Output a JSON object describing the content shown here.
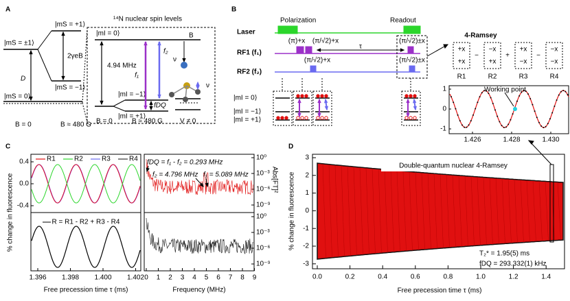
{
  "panel_a": {
    "letter": "A",
    "ms_p1": "|mS = +1⟩",
    "ms_pm1": "|mS = ±1⟩",
    "ms_m1": "|mS = −1⟩",
    "ms_0": "|mS = 0⟩",
    "zeeman": "2γeB",
    "zfs": "D",
    "b0": "B = 0",
    "b480": "B ≈ 480 G",
    "inset_title": "¹⁴N nuclear spin levels",
    "mi_0": "|mI = 0⟩",
    "split": "4.94 MHz",
    "f1": "f₁",
    "f2": "f₂",
    "mi_m1": "|mI = −1⟩",
    "mi_p1": "|mI = +1⟩",
    "fdq": "fDQ",
    "field": "B",
    "nu1": "ν",
    "nu2": "ν",
    "inset_b0": "B = 0",
    "inset_b480": "B ≈ 480 G",
    "vne0": "V ≠ 0"
  },
  "panel_b": {
    "letter": "B",
    "laser": "Laser",
    "polarization": "Polarization",
    "readout": "Readout",
    "rf1": "RF1 (f₁)",
    "rf2": "RF2 (f₂)",
    "pi_x": "(π)+x",
    "half_x": "(π/√2)+x",
    "tau": "τ",
    "half_pm": "(π/√2)±x",
    "rf2_half_x": "(π/√2)+x",
    "rf2_half_pm": "(π/√2)±x",
    "lvl_0": "|mI = 0⟩",
    "lvl_m1": "|mI = −1⟩",
    "lvl_p1": "|mI = +1⟩",
    "ramsey_title": "4-Ramsey",
    "ramsey": [
      {
        "name": "R1",
        "top": "+x",
        "bottom": "+x"
      },
      {
        "name": "R2",
        "top": "−x",
        "bottom": "+x"
      },
      {
        "name": "R3",
        "top": "+x",
        "bottom": "−x"
      },
      {
        "name": "R4",
        "top": "−x",
        "bottom": "−x"
      }
    ],
    "operators": [
      "−",
      "+",
      "−"
    ],
    "inset": {
      "annotation": "Working point",
      "yticks": [
        "1",
        "0",
        "-1"
      ],
      "xticks": [
        "1.426",
        "1.428",
        "1.430"
      ]
    }
  },
  "panel_c": {
    "letter": "C",
    "legend": [
      "R1",
      "R2",
      "R3",
      "R4"
    ],
    "ylabel": "% change in fluorescence",
    "yticks": [
      "0.4",
      "0.0",
      "-0.4"
    ],
    "combo": "R = R1 - R2 + R3 - R4",
    "xticks": [
      "1.396",
      "1.398",
      "1.400",
      "1.402"
    ],
    "xlabel": "Free precession time τ (ms)",
    "fdq": "fDQ = f₁ - f₂ = 0.293 MHz",
    "f2": "f₂ = 4.796 MHz",
    "f1": "f₁ = 5.089 MHz",
    "y2label": "Abs[FT]²",
    "y2ticks": [
      "10⁰",
      "10⁻³",
      "10⁻⁶",
      "10⁻⁹"
    ],
    "y2ticks_bottom": [
      "10⁰",
      "10⁻³",
      "10⁻⁶",
      "10⁻⁹"
    ],
    "fxticks": [
      "0",
      "1",
      "2",
      "3",
      "4",
      "5",
      "6",
      "7",
      "8",
      "9"
    ],
    "fxlabel": "Frequency (MHz)"
  },
  "panel_d": {
    "letter": "D",
    "title": "Double-quantum nuclear 4-Ramsey",
    "yticks": [
      "3",
      "2",
      "1",
      "0",
      "-1",
      "-2",
      "-3"
    ],
    "xticks": [
      "0.0",
      "0.2",
      "0.4",
      "0.6",
      "0.8",
      "1.0",
      "1.2",
      "1.4"
    ],
    "ylabel": "% change in fluorescence",
    "xlabel": "Free precession time τ (ms)",
    "t2": "T₂* = 1.95(5) ms",
    "fdq": "fDQ = 293.332(1) kHz"
  }
}
